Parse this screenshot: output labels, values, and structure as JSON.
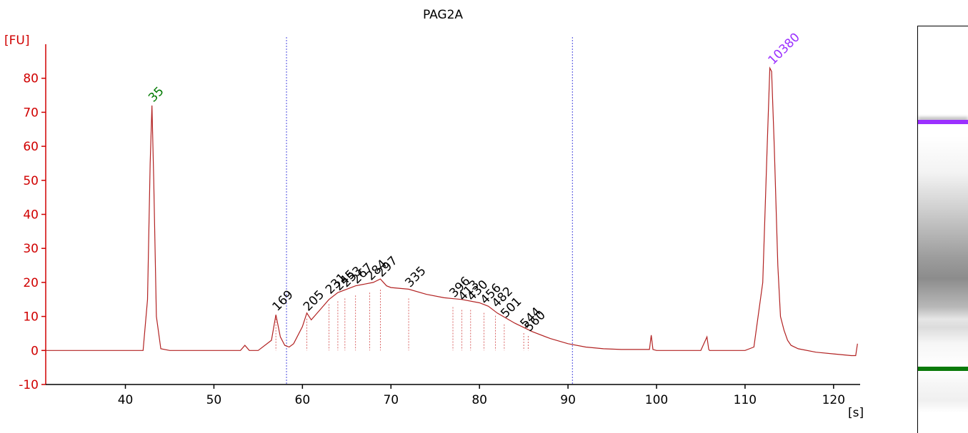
{
  "chart_data": {
    "type": "line",
    "title": "PAG2A",
    "ylabel": "[FU]",
    "xlabel": "[s]",
    "xlim": [
      31,
      123
    ],
    "ylim": [
      -10,
      90
    ],
    "xticks": [
      40,
      50,
      60,
      70,
      80,
      90,
      100,
      110,
      120
    ],
    "yticks": [
      -10,
      0,
      10,
      20,
      30,
      40,
      50,
      60,
      70,
      80
    ],
    "grid": false,
    "region_markers_s": [
      58.2,
      90.5
    ],
    "marker_peaks": [
      {
        "label": "35",
        "x": 43.0,
        "y": 72,
        "color": "#007a00"
      },
      {
        "label": "10380",
        "x": 113.0,
        "y": 83,
        "color": "#9b30ff"
      }
    ],
    "peak_labels": [
      {
        "label": "169",
        "x": 57.0,
        "y": 11
      },
      {
        "label": "205",
        "x": 60.5,
        "y": 11
      },
      {
        "label": "231",
        "x": 63.0,
        "y": 16
      },
      {
        "label": "245",
        "x": 64.0,
        "y": 17
      },
      {
        "label": "253",
        "x": 64.8,
        "y": 18
      },
      {
        "label": "267",
        "x": 66.0,
        "y": 19
      },
      {
        "label": "284",
        "x": 67.6,
        "y": 20
      },
      {
        "label": "297",
        "x": 68.8,
        "y": 21
      },
      {
        "label": "335",
        "x": 72.0,
        "y": 18
      },
      {
        "label": "396",
        "x": 77.0,
        "y": 15
      },
      {
        "label": "413",
        "x": 78.0,
        "y": 14
      },
      {
        "label": "430",
        "x": 79.0,
        "y": 14
      },
      {
        "label": "456",
        "x": 80.5,
        "y": 13
      },
      {
        "label": "482",
        "x": 81.8,
        "y": 12
      },
      {
        "label": "501",
        "x": 82.8,
        "y": 9
      },
      {
        "label": "544",
        "x": 85.0,
        "y": 6
      },
      {
        "label": "560",
        "x": 85.5,
        "y": 5
      }
    ],
    "series": [
      {
        "color": "#b22222",
        "x": [
          31,
          35,
          38,
          40,
          42.0,
          42.5,
          42.8,
          43.0,
          43.2,
          43.5,
          44.0,
          45,
          50,
          53,
          53.5,
          54,
          55,
          56.5,
          57.0,
          57.5,
          58.0,
          58.5,
          59.0,
          60.0,
          60.5,
          61.0,
          62,
          63,
          64,
          65,
          66,
          67,
          68,
          68.8,
          69.5,
          70,
          72,
          74,
          76,
          78,
          80,
          81,
          82,
          84,
          86,
          88,
          90,
          92,
          94,
          96,
          98,
          99.2,
          99.4,
          99.6,
          100,
          105,
          105.7,
          105.9,
          106,
          110,
          111,
          112,
          112.5,
          112.8,
          113.0,
          113.3,
          113.7,
          114.0,
          114.4,
          114.8,
          115.2,
          116,
          118,
          120,
          122,
          122.5,
          122.7
        ],
        "y": [
          0,
          0,
          0,
          0,
          0,
          15,
          55,
          72,
          50,
          10,
          0.5,
          0,
          0,
          0,
          1.5,
          0,
          0,
          3,
          10.5,
          4,
          1.5,
          1,
          2,
          7,
          11,
          9,
          12,
          15,
          17,
          18,
          19,
          19.5,
          20,
          21,
          19,
          18.5,
          18,
          16.5,
          15.5,
          15,
          14,
          13,
          11,
          8,
          5.5,
          3.5,
          2,
          1,
          0.5,
          0.3,
          0.3,
          0.3,
          4.5,
          0.3,
          0,
          0,
          4,
          0.3,
          0,
          0,
          1,
          20,
          60,
          83,
          82,
          60,
          25,
          10,
          6,
          3,
          1.5,
          0.5,
          -0.5,
          -1,
          -1.5,
          -1.5,
          2
        ]
      }
    ]
  }
}
